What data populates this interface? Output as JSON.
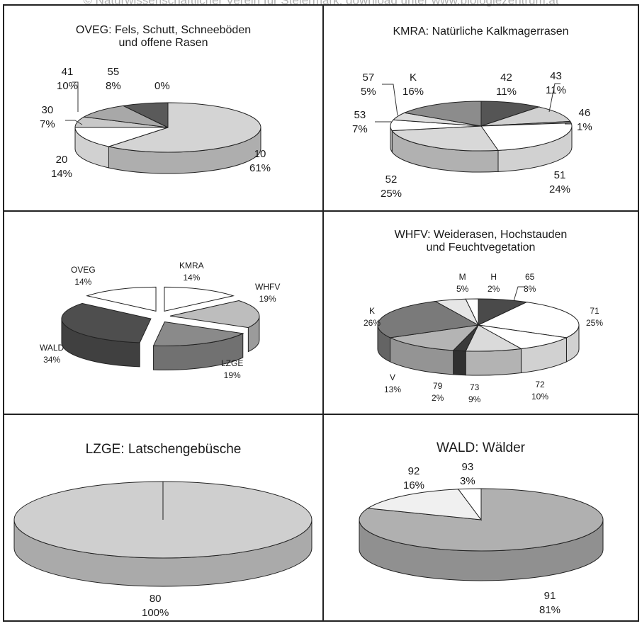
{
  "watermark": "© Naturwissenschaftlicher Verein für Steiermark; download unter www.biologiezentrum.at",
  "chart_data": [
    {
      "type": "pie",
      "title_line1": "OVEG: Fels, Schutt, Schneeböden",
      "title_line2": "und offene Rasen",
      "categories": [
        "10",
        "20",
        "30",
        "41",
        "55",
        "0"
      ],
      "values": [
        61,
        14,
        7,
        10,
        8,
        0
      ],
      "labels": [
        "61%",
        "14%",
        "7%",
        "10%",
        "8%",
        "0%"
      ],
      "colors": [
        "#d4d4d4",
        "#ffffff",
        "#c8c8c8",
        "#a8a8a8",
        "#5a5a5a",
        "#ffffff"
      ]
    },
    {
      "type": "pie",
      "title_line1": "KMRA: Natürliche Kalkmagerrasen",
      "categories": [
        "42",
        "43",
        "46",
        "51",
        "52",
        "53",
        "57",
        "K"
      ],
      "values": [
        11,
        11,
        1,
        24,
        25,
        7,
        5,
        16
      ],
      "labels": [
        "11%",
        "11%",
        "1%",
        "24%",
        "25%",
        "7%",
        "5%",
        "16%"
      ],
      "colors": [
        "#555555",
        "#d0d0d0",
        "#aaaaaa",
        "#ffffff",
        "#d8d8d8",
        "#ffffff",
        "#dcdcdc",
        "#8c8c8c"
      ]
    },
    {
      "type": "pie",
      "categories": [
        "KMRA",
        "WHFV",
        "LZGE",
        "WALD",
        "OVEG"
      ],
      "values": [
        14,
        19,
        19,
        34,
        14
      ],
      "labels": [
        "14%",
        "19%",
        "19%",
        "34%",
        "14%"
      ],
      "colors": [
        "#ffffff",
        "#bdbdbd",
        "#8a8a8a",
        "#4e4e4e",
        "#ffffff"
      ]
    },
    {
      "type": "pie",
      "title_line1": "WHFV: Weiderasen, Hochstauden",
      "title_line2": "und Feuchtvegetation",
      "categories": [
        "65",
        "71",
        "72",
        "73",
        "79",
        "V",
        "K",
        "M",
        "H"
      ],
      "values": [
        8,
        25,
        10,
        9,
        2,
        13,
        26,
        5,
        2
      ],
      "labels": [
        "8%",
        "25%",
        "10%",
        "9%",
        "2%",
        "13%",
        "26%",
        "5%",
        "2%"
      ],
      "colors": [
        "#4a4a4a",
        "#ffffff",
        "#ffffff",
        "#dadada",
        "#3a3a3a",
        "#b4b4b4",
        "#7a7a7a",
        "#e6e6e6",
        "#ffffff"
      ]
    },
    {
      "type": "pie",
      "title_line1": "LZGE: Latschengebüsche",
      "categories": [
        "80"
      ],
      "values": [
        100
      ],
      "labels": [
        "100%"
      ],
      "colors": [
        "#cfcfcf"
      ]
    },
    {
      "type": "pie",
      "title_line1": "WALD: Wälder",
      "categories": [
        "91",
        "92",
        "93"
      ],
      "values": [
        81,
        16,
        3
      ],
      "labels": [
        "81%",
        "16%",
        "3%"
      ],
      "colors": [
        "#b0b0b0",
        "#f0f0f0",
        "#ffffff"
      ]
    }
  ]
}
